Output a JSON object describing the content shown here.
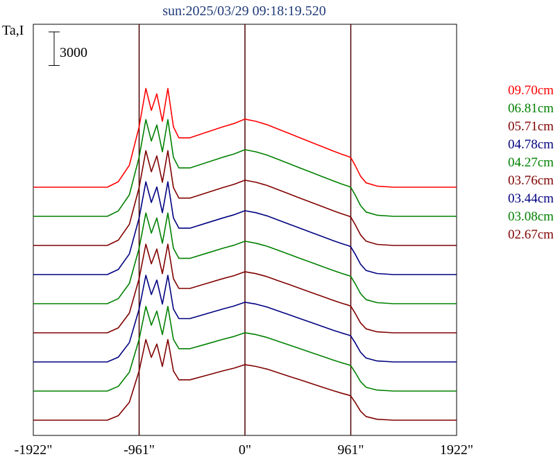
{
  "chart_data": {
    "type": "line",
    "title": "sun:2025/03/29 09:18:19.520",
    "ylabel": "Ta,I",
    "xlabel": "",
    "x_ticks": [
      {
        "value": -1922,
        "label": "-1922\""
      },
      {
        "value": -961,
        "label": "-961\""
      },
      {
        "value": 0,
        "label": "0\""
      },
      {
        "value": 961,
        "label": "961\""
      },
      {
        "value": 1922,
        "label": "1922\""
      }
    ],
    "xlim": [
      -1922,
      1922
    ],
    "ylim": [
      0,
      36000
    ],
    "vertical_lines": [
      -961,
      0,
      961
    ],
    "scale_bar": {
      "value": 3000,
      "label": "3000"
    },
    "grid": false,
    "legend_position": "right",
    "series_offset_step": 2600,
    "series": [
      {
        "name": "09.70cm",
        "color": "#ff0000",
        "offset": 20800
      },
      {
        "name": "06.81cm",
        "color": "#008000",
        "offset": 18200
      },
      {
        "name": "05.71cm",
        "color": "#800000",
        "offset": 15600
      },
      {
        "name": "04.78cm",
        "color": "#000080",
        "offset": 13000
      },
      {
        "name": "04.27cm",
        "color": "#008000",
        "offset": 10400
      },
      {
        "name": "03.76cm",
        "color": "#800000",
        "offset": 7800
      },
      {
        "name": "03.44cm",
        "color": "#000080",
        "offset": 5200
      },
      {
        "name": "03.08cm",
        "color": "#008000",
        "offset": 2600
      },
      {
        "name": "02.67cm",
        "color": "#800000",
        "offset": 0
      }
    ],
    "profile_x": [
      -1922,
      -1250,
      -1150,
      -1050,
      -961,
      -900,
      -850,
      -800,
      -750,
      -700,
      -650,
      -600,
      -500,
      -350,
      -200,
      -100,
      0,
      100,
      200,
      300,
      400,
      500,
      600,
      700,
      800,
      880,
      940,
      961,
      1000,
      1050,
      1100,
      1200,
      1350,
      1922
    ],
    "profile_shape": [
      0.0,
      0.0,
      0.05,
      0.2,
      0.55,
      0.9,
      0.7,
      0.85,
      0.6,
      0.9,
      0.55,
      0.45,
      0.45,
      0.5,
      0.55,
      0.58,
      0.62,
      0.6,
      0.57,
      0.53,
      0.49,
      0.45,
      0.41,
      0.37,
      0.33,
      0.3,
      0.28,
      0.27,
      0.2,
      0.1,
      0.04,
      0.01,
      0.0,
      0.0
    ],
    "peak_heights": [
      9800,
      9600,
      9400,
      9200,
      9000,
      8800,
      8600,
      8400,
      8000
    ]
  }
}
